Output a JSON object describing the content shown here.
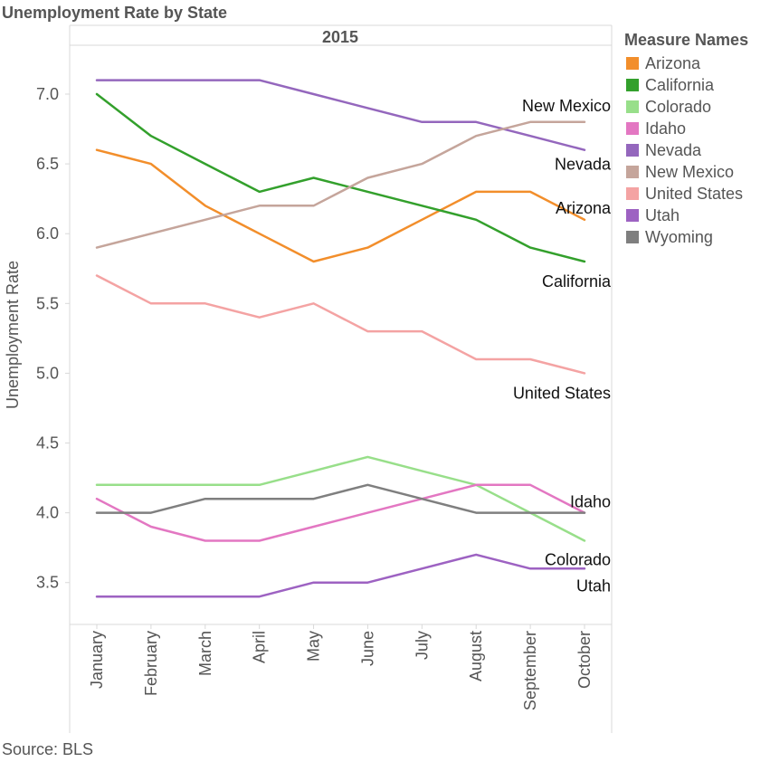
{
  "title": "Unemployment Rate by State",
  "source": "Source: BLS",
  "legend_title": "Measure Names",
  "chart_data": {
    "type": "line",
    "title": "Unemployment Rate by State",
    "panel_header": "2015",
    "xlabel": "",
    "ylabel": "Unemployment Rate",
    "ylim": [
      3.2,
      7.35
    ],
    "yticks": [
      3.5,
      4.0,
      4.5,
      5.0,
      5.5,
      6.0,
      6.5,
      7.0
    ],
    "ytick_labels": [
      "3.5",
      "4.0",
      "4.5",
      "5.0",
      "5.5",
      "6.0",
      "6.5",
      "7.0"
    ],
    "grid": false,
    "legend_position": "right",
    "x": [
      "January",
      "February",
      "March",
      "April",
      "May",
      "June",
      "July",
      "August",
      "September",
      "October"
    ],
    "series": [
      {
        "name": "Arizona",
        "color": "#f28e2b",
        "values": [
          6.6,
          6.5,
          6.2,
          6.0,
          5.8,
          5.9,
          6.1,
          6.3,
          6.3,
          6.1
        ]
      },
      {
        "name": "California",
        "color": "#33a02c",
        "values": [
          7.0,
          6.7,
          6.5,
          6.3,
          6.4,
          6.3,
          6.2,
          6.1,
          5.9,
          5.8
        ]
      },
      {
        "name": "Colorado",
        "color": "#98df8a",
        "values": [
          4.2,
          4.2,
          4.2,
          4.2,
          4.3,
          4.4,
          4.3,
          4.2,
          4.0,
          3.8
        ]
      },
      {
        "name": "Idaho",
        "color": "#e377c2",
        "values": [
          4.1,
          3.9,
          3.8,
          3.8,
          3.9,
          4.0,
          4.1,
          4.2,
          4.2,
          4.0
        ]
      },
      {
        "name": "Nevada",
        "color": "#9467bd",
        "values": [
          7.1,
          7.1,
          7.1,
          7.1,
          7.0,
          6.9,
          6.8,
          6.8,
          6.7,
          6.6
        ]
      },
      {
        "name": "New Mexico",
        "color": "#c5a59b",
        "values": [
          5.9,
          6.0,
          6.1,
          6.2,
          6.2,
          6.4,
          6.5,
          6.7,
          6.8,
          6.8
        ]
      },
      {
        "name": "United States",
        "color": "#f4a3a3",
        "values": [
          5.7,
          5.5,
          5.5,
          5.4,
          5.5,
          5.3,
          5.3,
          5.1,
          5.1,
          5.0
        ]
      },
      {
        "name": "Utah",
        "color": "#9d62c2",
        "values": [
          3.4,
          3.4,
          3.4,
          3.4,
          3.5,
          3.5,
          3.6,
          3.7,
          3.6,
          3.6
        ]
      },
      {
        "name": "Wyoming",
        "color": "#7f7f7f",
        "values": [
          4.0,
          4.0,
          4.1,
          4.1,
          4.1,
          4.2,
          4.1,
          4.0,
          4.0,
          4.0
        ]
      }
    ],
    "end_labels": [
      "New Mexico",
      "Nevada",
      "Arizona",
      "California",
      "United States",
      "Idaho",
      "Colorado",
      "Utah"
    ]
  }
}
